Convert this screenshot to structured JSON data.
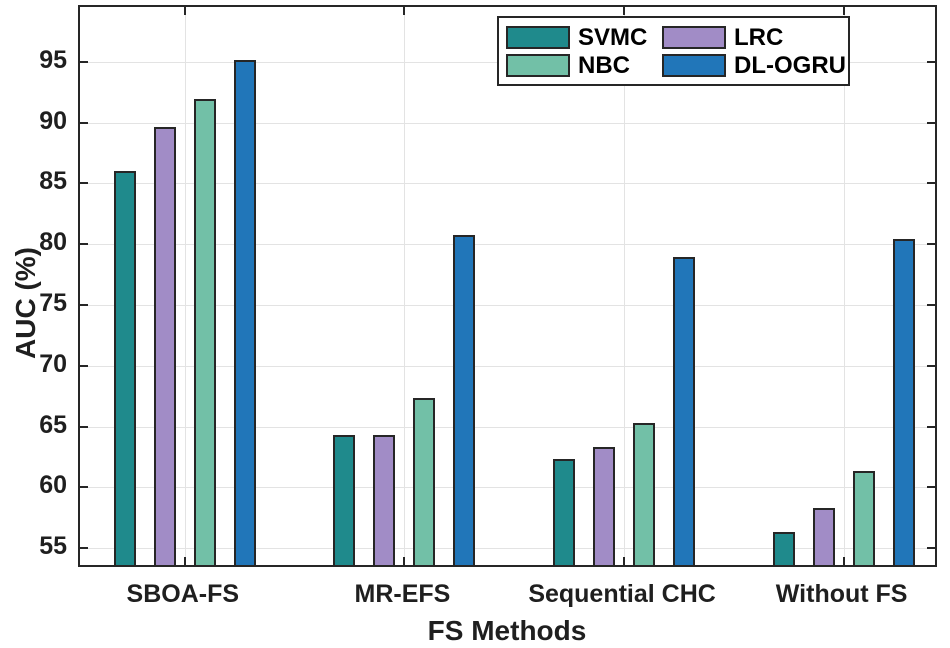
{
  "chart_data": {
    "type": "bar",
    "title": "",
    "xlabel": "FS Methods",
    "ylabel": "AUC (%)",
    "categories": [
      "SBOA-FS",
      "MR-EFS",
      "Sequential CHC",
      "Without FS"
    ],
    "series": [
      {
        "name": "SVMC",
        "color": "#1f8a8c",
        "values": [
          85.7,
          64.0,
          62.0,
          56.0
        ]
      },
      {
        "name": "LRC",
        "color": "#a18cc6",
        "values": [
          89.3,
          64.0,
          63.0,
          58.0
        ]
      },
      {
        "name": "NBC",
        "color": "#72c0a7",
        "values": [
          91.6,
          67.0,
          65.0,
          61.0
        ]
      },
      {
        "name": "DL-OGRU",
        "color": "#2176b9",
        "values": [
          94.8,
          80.4,
          78.6,
          80.1
        ]
      }
    ],
    "yticks": [
      55,
      60,
      65,
      70,
      75,
      80,
      85,
      90,
      95
    ],
    "ylim": [
      53.3,
      99.5
    ],
    "grid": true,
    "legend": {
      "position": "top-right",
      "columns": 2,
      "entries": [
        {
          "label": "SVMC",
          "color": "#1f8a8c"
        },
        {
          "label": "LRC",
          "color": "#a18cc6"
        },
        {
          "label": "NBC",
          "color": "#72c0a7"
        },
        {
          "label": "DL-OGRU",
          "color": "#2176b9"
        }
      ]
    }
  },
  "colors": {
    "axis": "#262626",
    "grid": "#e3e3e3",
    "bar_edge": "#262626",
    "background": "#ffffff"
  }
}
